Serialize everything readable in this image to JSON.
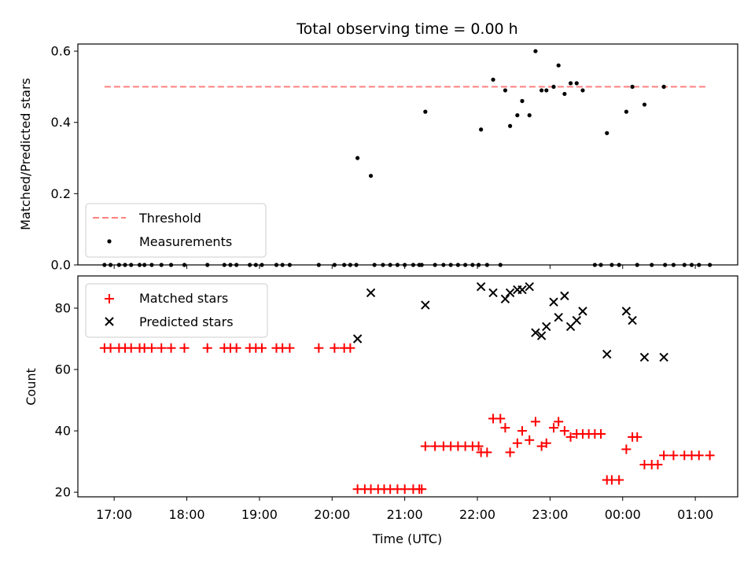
{
  "chart_data": [
    {
      "type": "scatter",
      "title": "Total observing time = 0.00 h",
      "xlabel": "",
      "ylabel": "Matched/Predicted stars",
      "xlim": [
        "16:30",
        "01:35"
      ],
      "ylim": [
        0,
        0.62
      ],
      "yticks": [
        "0.0",
        "0.2",
        "0.4",
        "0.6"
      ],
      "grid": false,
      "legend_position": "lower-left",
      "threshold": {
        "name": "Threshold",
        "value": 0.5,
        "x_range": [
          "16:52",
          "01:10"
        ],
        "color": "#ff8080",
        "style": "dashed"
      },
      "series": [
        {
          "name": "Measurements",
          "color": "#000000",
          "marker": "dot",
          "points": [
            [
              "16:52",
              0
            ],
            [
              "16:57",
              0
            ],
            [
              "17:04",
              0
            ],
            [
              "17:09",
              0
            ],
            [
              "17:14",
              0
            ],
            [
              "17:21",
              0
            ],
            [
              "17:25",
              0
            ],
            [
              "17:31",
              0
            ],
            [
              "17:39",
              0
            ],
            [
              "17:47",
              0
            ],
            [
              "17:58",
              0
            ],
            [
              "18:17",
              0
            ],
            [
              "18:31",
              0
            ],
            [
              "18:36",
              0
            ],
            [
              "18:41",
              0
            ],
            [
              "18:52",
              0
            ],
            [
              "18:57",
              0
            ],
            [
              "19:02",
              0
            ],
            [
              "19:14",
              0
            ],
            [
              "19:19",
              0
            ],
            [
              "19:25",
              0
            ],
            [
              "19:49",
              0
            ],
            [
              "20:02",
              0
            ],
            [
              "20:10",
              0
            ],
            [
              "20:15",
              0
            ],
            [
              "20:20",
              0
            ],
            [
              "20:35",
              0
            ],
            [
              "20:42",
              0
            ],
            [
              "20:48",
              0
            ],
            [
              "20:54",
              0
            ],
            [
              "21:00",
              0
            ],
            [
              "21:07",
              0
            ],
            [
              "21:12",
              0
            ],
            [
              "21:14",
              0
            ],
            [
              "21:25",
              0
            ],
            [
              "21:32",
              0
            ],
            [
              "21:38",
              0
            ],
            [
              "21:44",
              0
            ],
            [
              "21:50",
              0
            ],
            [
              "21:56",
              0
            ],
            [
              "22:01",
              0
            ],
            [
              "22:08",
              0
            ],
            [
              "22:19",
              0
            ],
            [
              "23:37",
              0
            ],
            [
              "23:42",
              0
            ],
            [
              "23:51",
              0
            ],
            [
              "23:57",
              0
            ],
            [
              "00:12",
              0
            ],
            [
              "00:24",
              0
            ],
            [
              "00:35",
              0
            ],
            [
              "00:42",
              0
            ],
            [
              "00:51",
              0
            ],
            [
              "00:57",
              0
            ],
            [
              "01:03",
              0
            ],
            [
              "01:12",
              0
            ],
            [
              "20:21",
              0.3
            ],
            [
              "20:32",
              0.25
            ],
            [
              "21:17",
              0.43
            ],
            [
              "22:03",
              0.38
            ],
            [
              "22:13",
              0.52
            ],
            [
              "22:23",
              0.49
            ],
            [
              "22:27",
              0.39
            ],
            [
              "22:33",
              0.42
            ],
            [
              "22:37",
              0.46
            ],
            [
              "22:43",
              0.42
            ],
            [
              "22:48",
              0.6
            ],
            [
              "22:53",
              0.49
            ],
            [
              "22:57",
              0.49
            ],
            [
              "23:03",
              0.5
            ],
            [
              "23:07",
              0.56
            ],
            [
              "23:12",
              0.48
            ],
            [
              "23:17",
              0.51
            ],
            [
              "23:22",
              0.51
            ],
            [
              "23:27",
              0.49
            ],
            [
              "23:47",
              0.37
            ],
            [
              "00:03",
              0.43
            ],
            [
              "00:08",
              0.5
            ],
            [
              "00:18",
              0.45
            ],
            [
              "00:34",
              0.5
            ]
          ]
        }
      ]
    },
    {
      "type": "scatter",
      "title": "",
      "xlabel": "Time (UTC)",
      "ylabel": "Count",
      "xlim": [
        "16:30",
        "01:35"
      ],
      "ylim": [
        18.5,
        90.5
      ],
      "yticks": [
        "20",
        "40",
        "60",
        "80"
      ],
      "xticks": [
        "17:00",
        "18:00",
        "19:00",
        "20:00",
        "21:00",
        "22:00",
        "23:00",
        "00:00",
        "01:00"
      ],
      "grid": false,
      "legend_position": "upper-left",
      "series": [
        {
          "name": "Matched stars",
          "color": "#ff0000",
          "marker": "plus",
          "points": [
            [
              "16:52",
              67
            ],
            [
              "16:57",
              67
            ],
            [
              "17:04",
              67
            ],
            [
              "17:09",
              67
            ],
            [
              "17:14",
              67
            ],
            [
              "17:21",
              67
            ],
            [
              "17:25",
              67
            ],
            [
              "17:31",
              67
            ],
            [
              "17:39",
              67
            ],
            [
              "17:47",
              67
            ],
            [
              "17:58",
              67
            ],
            [
              "18:17",
              67
            ],
            [
              "18:31",
              67
            ],
            [
              "18:36",
              67
            ],
            [
              "18:41",
              67
            ],
            [
              "18:52",
              67
            ],
            [
              "18:57",
              67
            ],
            [
              "19:02",
              67
            ],
            [
              "19:14",
              67
            ],
            [
              "19:19",
              67
            ],
            [
              "19:25",
              67
            ],
            [
              "19:49",
              67
            ],
            [
              "20:02",
              67
            ],
            [
              "20:10",
              67
            ],
            [
              "20:15",
              67
            ],
            [
              "20:21",
              21
            ],
            [
              "20:27",
              21
            ],
            [
              "20:32",
              21
            ],
            [
              "20:38",
              21
            ],
            [
              "20:43",
              21
            ],
            [
              "20:48",
              21
            ],
            [
              "20:54",
              21
            ],
            [
              "21:00",
              21
            ],
            [
              "21:07",
              21
            ],
            [
              "21:12",
              21
            ],
            [
              "21:14",
              21
            ],
            [
              "21:17",
              35
            ],
            [
              "21:25",
              35
            ],
            [
              "21:32",
              35
            ],
            [
              "21:38",
              35
            ],
            [
              "21:44",
              35
            ],
            [
              "21:50",
              35
            ],
            [
              "21:56",
              35
            ],
            [
              "22:01",
              35
            ],
            [
              "22:03",
              33
            ],
            [
              "22:08",
              33
            ],
            [
              "22:13",
              44
            ],
            [
              "22:19",
              44
            ],
            [
              "22:23",
              41
            ],
            [
              "22:27",
              33
            ],
            [
              "22:33",
              36
            ],
            [
              "22:37",
              40
            ],
            [
              "22:43",
              37
            ],
            [
              "22:48",
              43
            ],
            [
              "22:53",
              35
            ],
            [
              "22:57",
              36
            ],
            [
              "23:03",
              41
            ],
            [
              "23:07",
              43
            ],
            [
              "23:12",
              40
            ],
            [
              "23:17",
              38
            ],
            [
              "23:22",
              39
            ],
            [
              "23:27",
              39
            ],
            [
              "23:32",
              39
            ],
            [
              "23:37",
              39
            ],
            [
              "23:42",
              39
            ],
            [
              "23:47",
              24
            ],
            [
              "23:51",
              24
            ],
            [
              "23:57",
              24
            ],
            [
              "00:03",
              34
            ],
            [
              "00:08",
              38
            ],
            [
              "00:12",
              38
            ],
            [
              "00:18",
              29
            ],
            [
              "00:24",
              29
            ],
            [
              "00:29",
              29
            ],
            [
              "00:34",
              32
            ],
            [
              "00:42",
              32
            ],
            [
              "00:51",
              32
            ],
            [
              "00:57",
              32
            ],
            [
              "01:03",
              32
            ],
            [
              "01:12",
              32
            ]
          ]
        },
        {
          "name": "Predicted stars",
          "color": "#000000",
          "marker": "x",
          "points": [
            [
              "20:21",
              70
            ],
            [
              "20:32",
              85
            ],
            [
              "21:17",
              81
            ],
            [
              "22:03",
              87
            ],
            [
              "22:13",
              85
            ],
            [
              "22:23",
              83
            ],
            [
              "22:27",
              85
            ],
            [
              "22:33",
              86
            ],
            [
              "22:37",
              86
            ],
            [
              "22:43",
              87
            ],
            [
              "22:48",
              72
            ],
            [
              "22:53",
              71
            ],
            [
              "22:57",
              74
            ],
            [
              "23:03",
              82
            ],
            [
              "23:07",
              77
            ],
            [
              "23:12",
              84
            ],
            [
              "23:17",
              74
            ],
            [
              "23:22",
              76
            ],
            [
              "23:27",
              79
            ],
            [
              "23:47",
              65
            ],
            [
              "00:03",
              79
            ],
            [
              "00:08",
              76
            ],
            [
              "00:18",
              64
            ],
            [
              "00:34",
              64
            ]
          ]
        }
      ]
    }
  ]
}
